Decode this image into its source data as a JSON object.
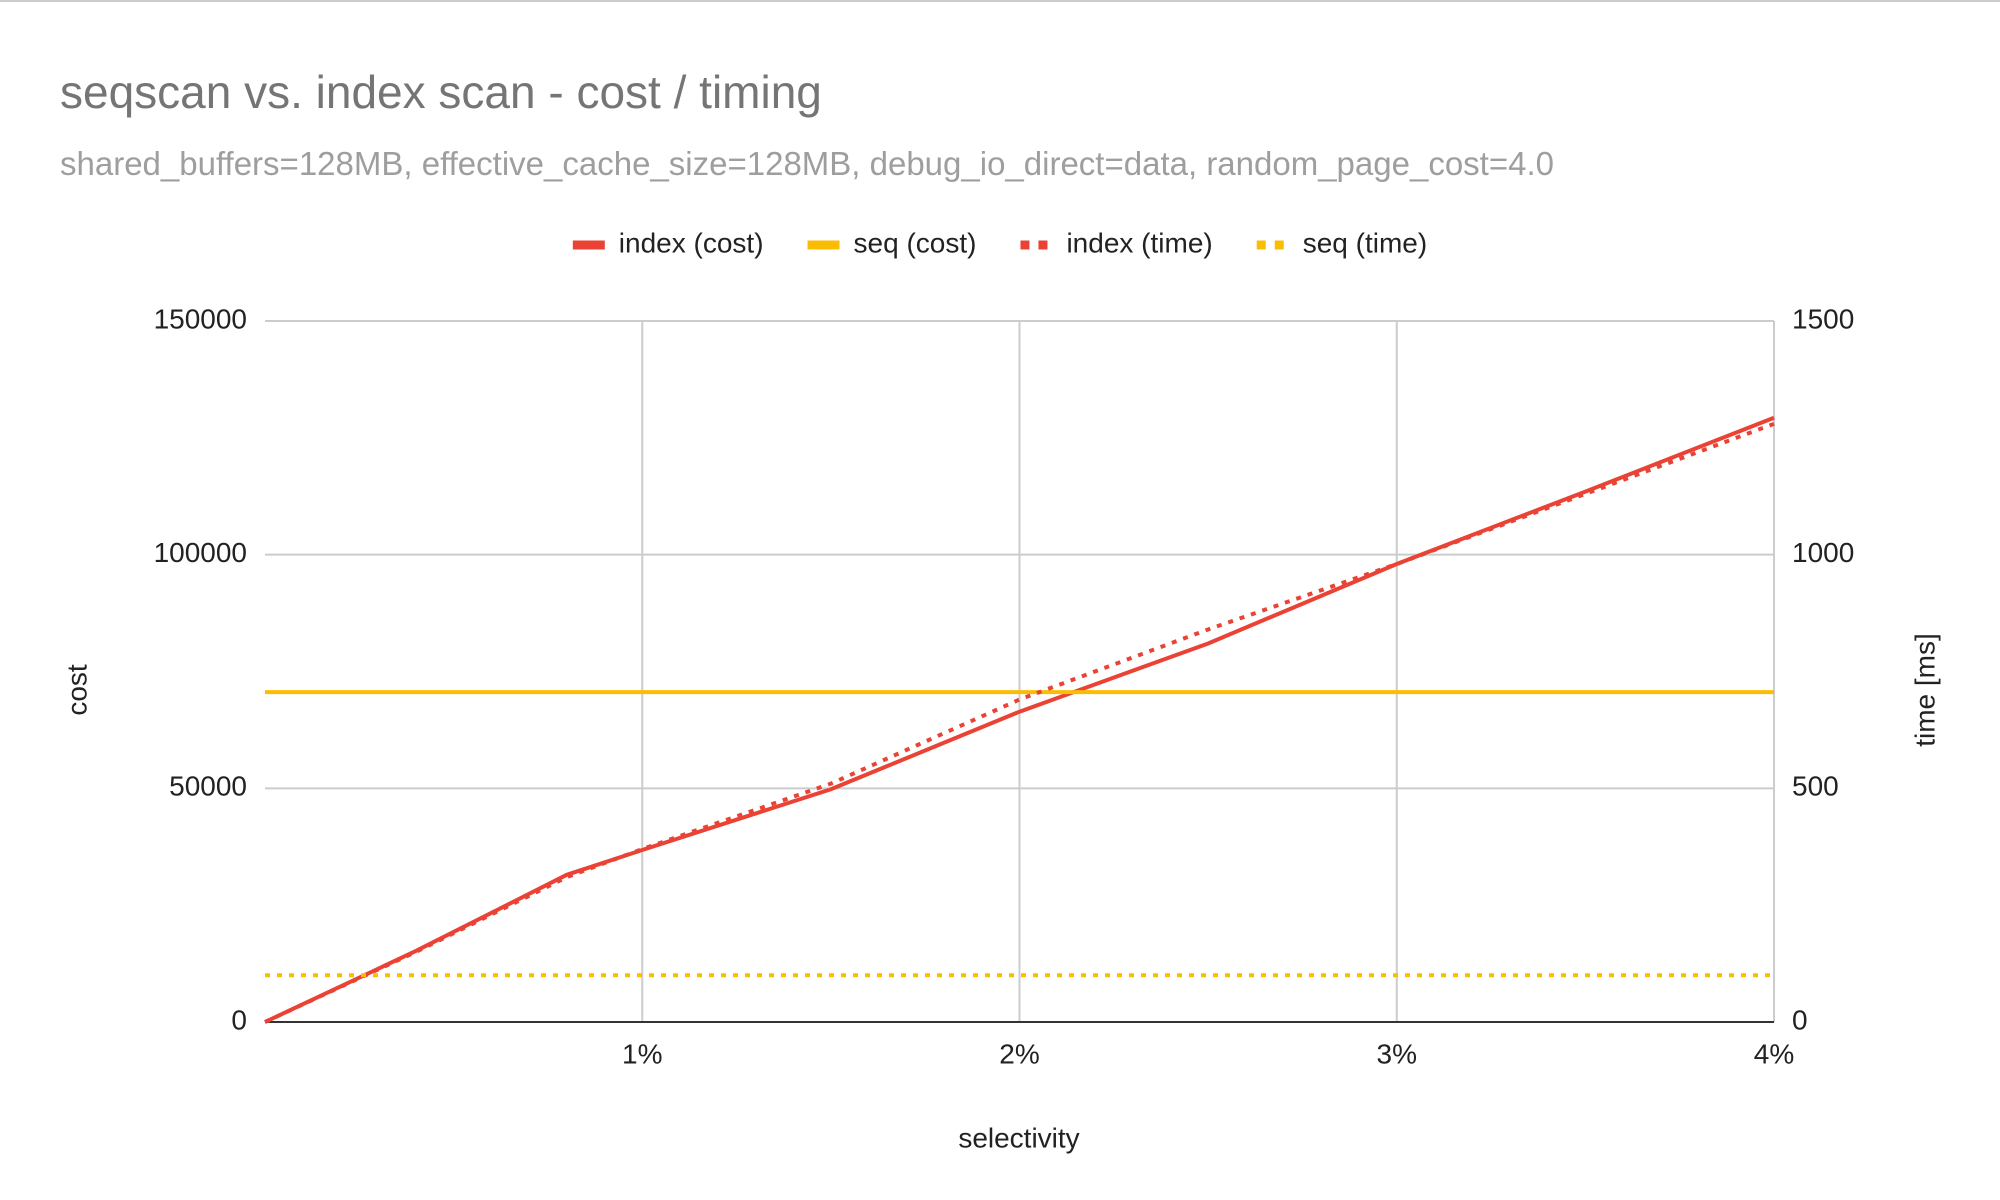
{
  "chart_data": {
    "type": "line",
    "title": "seqscan vs. index scan - cost / timing",
    "subtitle": "shared_buffers=128MB, effective_cache_size=128MB, debug_io_direct=data, random_page_cost=4.0",
    "x_label": "selectivity",
    "y_label": "cost",
    "y2_label": "time [ms]",
    "x": [
      0,
      0.4,
      0.8,
      1,
      1.5,
      2,
      2.5,
      3,
      3.5,
      4
    ],
    "xlim": [
      0,
      4
    ],
    "xticks": [
      {
        "value": 1,
        "label": "1%"
      },
      {
        "value": 2,
        "label": "2%"
      },
      {
        "value": 3,
        "label": "3%"
      },
      {
        "value": 4,
        "label": "4%"
      }
    ],
    "ylim": [
      0,
      150000
    ],
    "yticks": [
      0,
      50000,
      100000,
      150000
    ],
    "y2lim": [
      0,
      1500
    ],
    "y2ticks": [
      0,
      500,
      1000,
      1500
    ],
    "grid": true,
    "legend": "top",
    "series": [
      {
        "name": "index (cost)",
        "color": "#ea4335",
        "line_style": "solid",
        "values": [
          0,
          15200,
          31500,
          36800,
          49800,
          66400,
          81000,
          98000,
          113500,
          129300
        ]
      },
      {
        "name": "seq (cost)",
        "color": "#fbbc04",
        "line_style": "solid",
        "values": [
          70600,
          70600,
          70600,
          70600,
          70600,
          70600,
          70600,
          70600,
          70600,
          70600
        ]
      },
      {
        "name": "index (time)",
        "color": "#ea4335",
        "line_style": "dotted",
        "axis": "y2",
        "values": [
          0,
          150,
          310,
          370,
          510,
          690,
          840,
          980,
          1130,
          1280
        ]
      },
      {
        "name": "seq (time)",
        "color": "#fbbc04",
        "line_style": "dotted",
        "axis": "y2",
        "values": [
          100,
          100,
          100,
          100,
          100,
          100,
          100,
          100,
          100,
          100
        ]
      }
    ]
  }
}
